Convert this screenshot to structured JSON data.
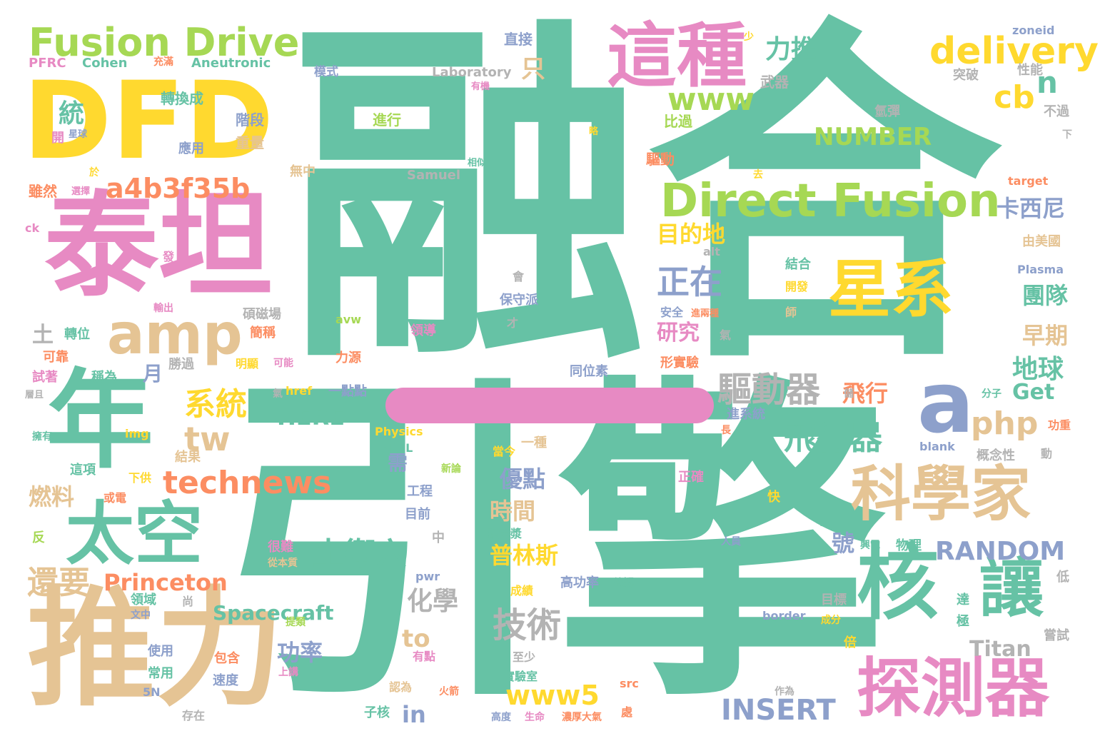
{
  "colors": {
    "teal": "#66c2a5",
    "pink": "#e78ac3",
    "yellow": "#ffd92f",
    "tan": "#e5c494",
    "green": "#a6d854",
    "orange": "#fc8d62",
    "blue": "#8da0cb",
    "gray": "#b3b3b3"
  },
  "words": [
    {
      "text": "融合",
      "color": "teal"
    },
    {
      "text": "引擎",
      "color": "teal"
    },
    {
      "text": "DFD",
      "color": "yellow"
    },
    {
      "text": "泰坦",
      "color": "pink"
    },
    {
      "text": "推力",
      "color": "tan"
    },
    {
      "text": "年",
      "color": "teal"
    },
    {
      "text": "Fusion Drive",
      "color": "green"
    },
    {
      "text": "這種",
      "color": "pink"
    },
    {
      "text": "delivery",
      "color": "yellow"
    },
    {
      "text": "Direct Fusion",
      "color": "green"
    },
    {
      "text": "星系",
      "color": "yellow"
    },
    {
      "text": "科學家",
      "color": "tan"
    },
    {
      "text": "核",
      "color": "teal"
    },
    {
      "text": "讓",
      "color": "teal"
    },
    {
      "text": "探測器",
      "color": "pink"
    },
    {
      "text": "a",
      "color": "blue"
    },
    {
      "text": "amp",
      "color": "tan"
    },
    {
      "text": "太空",
      "color": "teal"
    },
    {
      "text": "a4b3f35b",
      "color": "orange"
    },
    {
      "text": "www",
      "color": "green"
    },
    {
      "text": "cb",
      "color": "yellow"
    },
    {
      "text": "n",
      "color": "teal"
    },
    {
      "text": "力推",
      "color": "teal"
    },
    {
      "text": "NUMBER",
      "color": "green"
    },
    {
      "text": "technews",
      "color": "orange"
    },
    {
      "text": "土衛六",
      "color": "teal"
    },
    {
      "text": "系統",
      "color": "yellow"
    },
    {
      "text": "tw",
      "color": "tan"
    },
    {
      "text": "正在",
      "color": "blue"
    },
    {
      "text": "驅動器",
      "color": "gray"
    },
    {
      "text": "飛行器",
      "color": "teal"
    },
    {
      "text": "php",
      "color": "tan"
    },
    {
      "text": "卡西尼",
      "color": "blue"
    },
    {
      "text": "團隊",
      "color": "teal"
    },
    {
      "text": "早期",
      "color": "tan"
    },
    {
      "text": "地球",
      "color": "teal"
    },
    {
      "text": "Get",
      "color": "teal"
    },
    {
      "text": "RANDOM",
      "color": "blue"
    },
    {
      "text": "還要",
      "color": "tan"
    },
    {
      "text": "Princeton",
      "color": "orange"
    },
    {
      "text": "Spacecraft",
      "color": "teal"
    },
    {
      "text": "技術",
      "color": "gray"
    },
    {
      "text": "化學",
      "color": "gray"
    },
    {
      "text": "INSERT",
      "color": "blue"
    },
    {
      "text": "www5",
      "color": "yellow"
    },
    {
      "text": "Titan",
      "color": "gray"
    },
    {
      "text": "HERE",
      "color": "teal"
    },
    {
      "text": "燃料",
      "color": "tan"
    },
    {
      "text": "目的地",
      "color": "yellow"
    },
    {
      "text": "研究",
      "color": "pink"
    },
    {
      "text": "飛行",
      "color": "orange"
    },
    {
      "text": "功率",
      "color": "blue"
    },
    {
      "text": "普林斯",
      "color": "yellow"
    },
    {
      "text": "時間",
      "color": "tan"
    },
    {
      "text": "優點",
      "color": "blue"
    },
    {
      "text": "統",
      "color": "teal"
    },
    {
      "text": "土",
      "color": "gray"
    },
    {
      "text": "月",
      "color": "blue"
    },
    {
      "text": "只",
      "color": "tan"
    },
    {
      "text": "需",
      "color": "blue"
    },
    {
      "text": "號",
      "color": "blue"
    },
    {
      "text": "to",
      "color": "tan"
    },
    {
      "text": "in",
      "color": "blue"
    },
    {
      "text": "PFRC",
      "color": "pink"
    },
    {
      "text": "Cohen",
      "color": "teal"
    },
    {
      "text": "Aneutronic",
      "color": "teal"
    },
    {
      "text": "模式",
      "color": "blue"
    },
    {
      "text": "Laboratory",
      "color": "gray"
    },
    {
      "text": "轉換成",
      "color": "teal"
    },
    {
      "text": "直接",
      "color": "blue"
    },
    {
      "text": "zoneid",
      "color": "blue"
    },
    {
      "text": "性能",
      "color": "gray"
    },
    {
      "text": "突破",
      "color": "gray"
    },
    {
      "text": "武器",
      "color": "gray"
    },
    {
      "text": "進行",
      "color": "green"
    },
    {
      "text": "階段",
      "color": "blue"
    },
    {
      "text": "重量",
      "color": "tan"
    },
    {
      "text": "應用",
      "color": "blue"
    },
    {
      "text": "比過",
      "color": "green"
    },
    {
      "text": "氫彈",
      "color": "gray"
    },
    {
      "text": "不過",
      "color": "gray"
    },
    {
      "text": "驅動",
      "color": "orange"
    },
    {
      "text": "Samuel",
      "color": "gray"
    },
    {
      "text": "無中",
      "color": "tan"
    },
    {
      "text": "雖然",
      "color": "orange"
    },
    {
      "text": "target",
      "color": "orange"
    },
    {
      "text": "由美國",
      "color": "tan"
    },
    {
      "text": "ck",
      "color": "pink"
    },
    {
      "text": "alt",
      "color": "gray"
    },
    {
      "text": "Plasma",
      "color": "blue"
    },
    {
      "text": "結合",
      "color": "teal"
    },
    {
      "text": "開發",
      "color": "yellow"
    },
    {
      "text": "師",
      "color": "tan"
    },
    {
      "text": "保守派",
      "color": "blue"
    },
    {
      "text": "安全",
      "color": "blue"
    },
    {
      "text": "碩磁場",
      "color": "gray"
    },
    {
      "text": "簡稱",
      "color": "orange"
    },
    {
      "text": "領導",
      "color": "pink"
    },
    {
      "text": "avw",
      "color": "green"
    },
    {
      "text": "轉位",
      "color": "teal"
    },
    {
      "text": "可靠",
      "color": "orange"
    },
    {
      "text": "試著",
      "color": "pink"
    },
    {
      "text": "稱為",
      "color": "teal"
    },
    {
      "text": "勝過",
      "color": "gray"
    },
    {
      "text": "明顯",
      "color": "yellow"
    },
    {
      "text": "力源",
      "color": "orange"
    },
    {
      "text": "同位素",
      "color": "blue"
    },
    {
      "text": "形實驗",
      "color": "orange"
    },
    {
      "text": "分子",
      "color": "teal"
    },
    {
      "text": "href",
      "color": "yellow"
    },
    {
      "text": "一點點",
      "color": "blue"
    },
    {
      "text": "img",
      "color": "yellow"
    },
    {
      "text": "Physics",
      "color": "yellow"
    },
    {
      "text": "PPPL",
      "color": "teal"
    },
    {
      "text": "結果",
      "color": "tan"
    },
    {
      "text": "進系統",
      "color": "blue"
    },
    {
      "text": "功重",
      "color": "orange"
    },
    {
      "text": "概念性",
      "color": "gray"
    },
    {
      "text": "blank",
      "color": "blue"
    },
    {
      "text": "一種",
      "color": "tan"
    },
    {
      "text": "當今",
      "color": "yellow"
    },
    {
      "text": "這項",
      "color": "teal"
    },
    {
      "text": "下供",
      "color": "yellow"
    },
    {
      "text": "或電",
      "color": "orange"
    },
    {
      "text": "工程",
      "color": "blue"
    },
    {
      "text": "目前",
      "color": "blue"
    },
    {
      "text": "碩電漿",
      "color": "teal"
    },
    {
      "text": "正確",
      "color": "pink"
    },
    {
      "text": "物理",
      "color": "teal"
    },
    {
      "text": "人員",
      "color": "blue"
    },
    {
      "text": "很難",
      "color": "pink"
    },
    {
      "text": "反",
      "color": "green"
    },
    {
      "text": "pwr",
      "color": "blue"
    },
    {
      "text": "高功率",
      "color": "blue"
    },
    {
      "text": "成績",
      "color": "yellow"
    },
    {
      "text": "領域",
      "color": "teal"
    },
    {
      "text": "尚",
      "color": "gray"
    },
    {
      "text": "目標",
      "color": "gray"
    },
    {
      "text": "border",
      "color": "blue"
    },
    {
      "text": "使用",
      "color": "blue"
    },
    {
      "text": "至少",
      "color": "gray"
    },
    {
      "text": "有點",
      "color": "pink"
    },
    {
      "text": "包含",
      "color": "orange"
    },
    {
      "text": "常用",
      "color": "teal"
    },
    {
      "text": "實驗室",
      "color": "teal"
    },
    {
      "text": "嘗試",
      "color": "gray"
    },
    {
      "text": "速度",
      "color": "blue"
    },
    {
      "text": "認為",
      "color": "tan"
    },
    {
      "text": "src",
      "color": "orange"
    },
    {
      "text": "5N",
      "color": "blue"
    },
    {
      "text": "子核",
      "color": "teal"
    },
    {
      "text": "高度",
      "color": "blue"
    },
    {
      "text": "生命",
      "color": "pink"
    },
    {
      "text": "濃厚大氣",
      "color": "orange"
    },
    {
      "text": "處",
      "color": "orange"
    },
    {
      "text": "存在",
      "color": "gray"
    },
    {
      "text": "倍",
      "color": "yellow"
    },
    {
      "text": "極",
      "color": "teal"
    },
    {
      "text": "達",
      "color": "teal"
    },
    {
      "text": "低",
      "color": "gray"
    },
    {
      "text": "快",
      "color": "yellow"
    },
    {
      "text": "內",
      "color": "teal"
    },
    {
      "text": "會",
      "color": "gray"
    },
    {
      "text": "才",
      "color": "gray"
    },
    {
      "text": "氣",
      "color": "gray"
    },
    {
      "text": "作為",
      "color": "gray"
    },
    {
      "text": "中",
      "color": "gray"
    },
    {
      "text": "動",
      "color": "gray"
    },
    {
      "text": "長",
      "color": "orange"
    },
    {
      "text": "火箭",
      "color": "orange"
    },
    {
      "text": "上講",
      "color": "pink"
    },
    {
      "text": "文中",
      "color": "blue"
    },
    {
      "text": "提類",
      "color": "green"
    },
    {
      "text": "成分",
      "color": "yellow"
    },
    {
      "text": "懷疑",
      "color": "teal"
    },
    {
      "text": "從本質",
      "color": "tan"
    },
    {
      "text": "新論",
      "color": "green"
    },
    {
      "text": "興電",
      "color": "teal"
    },
    {
      "text": "儲",
      "color": "gray"
    },
    {
      "text": "可能",
      "color": "pink"
    },
    {
      "text": "氣",
      "color": "gray"
    },
    {
      "text": "輸出",
      "color": "pink"
    },
    {
      "text": "發",
      "color": "pink"
    },
    {
      "text": "擁有",
      "color": "teal"
    },
    {
      "text": "層且",
      "color": "gray"
    },
    {
      "text": "星球",
      "color": "blue"
    },
    {
      "text": "開",
      "color": "pink"
    },
    {
      "text": "充滿",
      "color": "orange"
    },
    {
      "text": "少",
      "color": "yellow"
    },
    {
      "text": "有機",
      "color": "pink"
    },
    {
      "text": "相似",
      "color": "teal"
    },
    {
      "text": "略",
      "color": "yellow"
    },
    {
      "text": "去",
      "color": "yellow"
    },
    {
      "text": "下",
      "color": "gray"
    },
    {
      "text": "於",
      "color": "yellow"
    },
    {
      "text": "選擇",
      "color": "pink"
    },
    {
      "text": "進兩種",
      "color": "orange"
    }
  ]
}
